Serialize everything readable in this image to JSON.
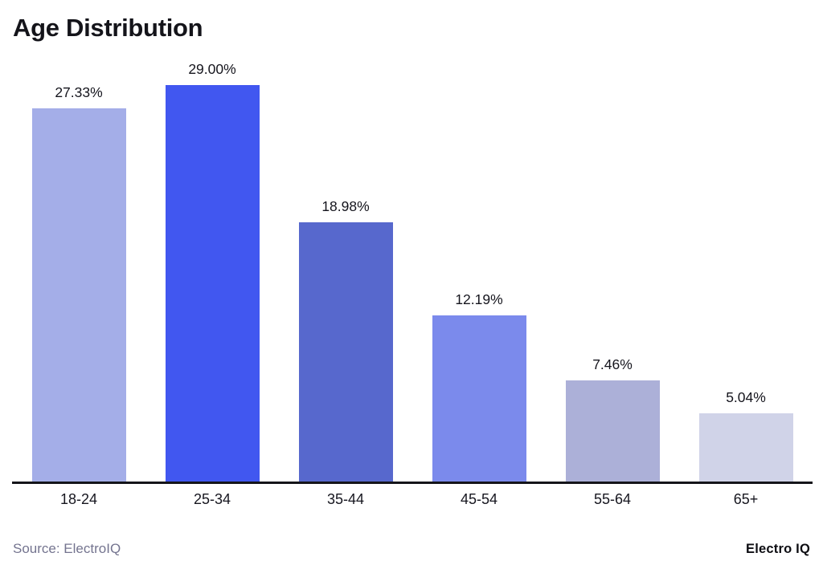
{
  "chart_data": {
    "type": "bar",
    "title": "Age Distribution",
    "categories": [
      "18-24",
      "25-34",
      "35-44",
      "45-54",
      "55-64",
      "65+"
    ],
    "values": [
      27.33,
      29.0,
      18.98,
      12.19,
      7.46,
      5.04
    ],
    "value_labels": [
      "27.33%",
      "29.00%",
      "18.98%",
      "12.19%",
      "7.46%",
      "5.04%"
    ],
    "bar_colors": [
      "#a4aee8",
      "#4157f0",
      "#5768cd",
      "#7b8aec",
      "#acb0d8",
      "#d0d3e8"
    ],
    "xlabel": "",
    "ylabel": "",
    "ylim": [
      0,
      30
    ],
    "grid": false,
    "legend": false,
    "axis_line_color": "#15151a",
    "title_color": "#14141a",
    "value_label_color": "#15151d",
    "tick_label_color": "#16161f"
  },
  "footer": {
    "source": "Source: ElectroIQ",
    "source_color": "#74748f",
    "brand": "Electro IQ",
    "brand_color": "#0d0d12"
  }
}
